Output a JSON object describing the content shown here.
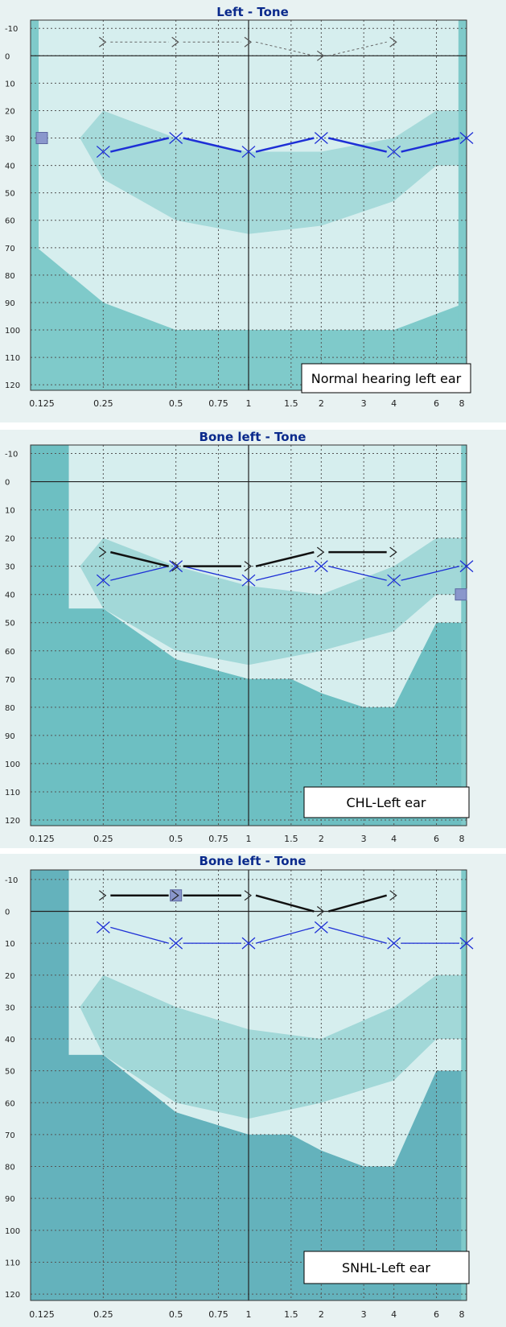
{
  "colors": {
    "plot_bg": "#d6eeee",
    "band_light": "#a9dede",
    "band_mid": "#7fcaca",
    "band_dark": "#5fb6bb",
    "band_dark_snhl": "#4f9fb0",
    "air_line": "#1d2fd6",
    "bone_line": "#111111",
    "masking_marker": "#8a97cc",
    "title": "#0a2a8c"
  },
  "chart_data": [
    {
      "type": "line",
      "title": "Left - Tone",
      "label_box": "Normal hearing left ear",
      "x_ticks": [
        "0.125",
        "0.25",
        "0.5",
        "0.75",
        "1",
        "1.5",
        "2",
        "3",
        "4",
        "6",
        "8"
      ],
      "y_ticks": [
        "-10",
        "0",
        "10",
        "20",
        "30",
        "40",
        "50",
        "60",
        "70",
        "80",
        "90",
        "100",
        "110",
        "120"
      ],
      "xlim": [
        0.125,
        8
      ],
      "ylim": [
        -13,
        122
      ],
      "y_inverted": true,
      "x_scale": "log",
      "series": [
        {
          "marker": "x",
          "x": [
            0.25,
            0.5,
            1,
            2,
            4,
            8
          ],
          "values": [
            35,
            30,
            35,
            30,
            35,
            30
          ]
        },
        {
          "marker": ">",
          "x": [
            0.25,
            0.5,
            1,
            2,
            4
          ],
          "values": [
            -5,
            -5,
            -5,
            0,
            -5
          ],
          "dashed": true
        }
      ],
      "masking_marker": {
        "x": 0.125,
        "y": 30
      }
    },
    {
      "type": "line",
      "title": "Bone left - Tone",
      "label_box": "CHL-Left ear",
      "x_ticks": [
        "0.125",
        "0.25",
        "0.5",
        "0.75",
        "1",
        "1.5",
        "2",
        "3",
        "4",
        "6",
        "8"
      ],
      "y_ticks": [
        "-10",
        "0",
        "10",
        "20",
        "30",
        "40",
        "50",
        "60",
        "70",
        "80",
        "90",
        "100",
        "110",
        "120"
      ],
      "xlim": [
        0.125,
        8
      ],
      "ylim": [
        -13,
        122
      ],
      "y_inverted": true,
      "x_scale": "log",
      "series": [
        {
          "marker": "x",
          "x": [
            0.25,
            0.5,
            1,
            2,
            4,
            8
          ],
          "values": [
            35,
            30,
            35,
            30,
            35,
            30
          ]
        },
        {
          "marker": ">",
          "x": [
            0.25,
            0.5,
            1,
            2,
            4
          ],
          "values": [
            25,
            30,
            30,
            25,
            25
          ]
        }
      ],
      "masking_marker": {
        "x": 8,
        "y": 40
      }
    },
    {
      "type": "line",
      "title": "Bone left - Tone",
      "label_box": "SNHL-Left ear",
      "x_ticks": [
        "0.125",
        "0.25",
        "0.5",
        "0.75",
        "1",
        "1.5",
        "2",
        "3",
        "4",
        "6",
        "8"
      ],
      "y_ticks": [
        "-10",
        "0",
        "10",
        "20",
        "30",
        "40",
        "50",
        "60",
        "70",
        "80",
        "90",
        "100",
        "110",
        "120"
      ],
      "xlim": [
        0.125,
        8
      ],
      "ylim": [
        -13,
        122
      ],
      "y_inverted": true,
      "x_scale": "log",
      "series": [
        {
          "marker": "x",
          "x": [
            0.25,
            0.5,
            1,
            2,
            4,
            8
          ],
          "values": [
            5,
            10,
            10,
            5,
            10,
            10
          ]
        },
        {
          "marker": ">",
          "x": [
            0.25,
            0.5,
            1,
            2,
            4
          ],
          "values": [
            -5,
            -5,
            -5,
            0,
            -5
          ]
        }
      ],
      "masking_marker": {
        "x": 0.5,
        "y": -5
      }
    }
  ]
}
